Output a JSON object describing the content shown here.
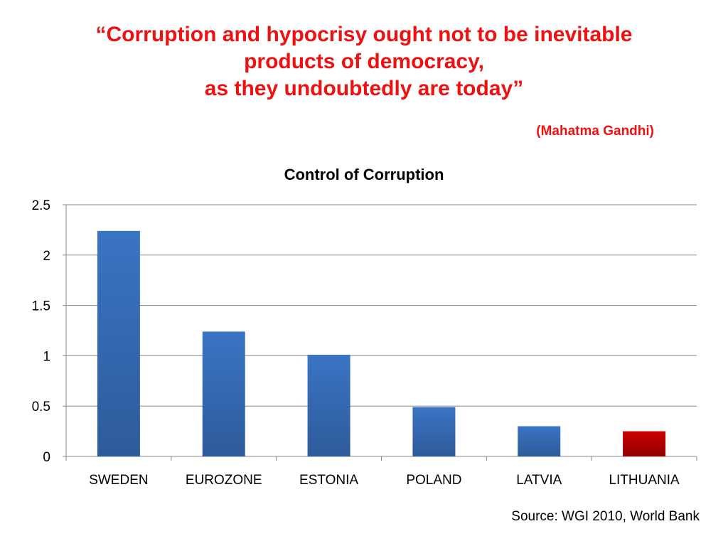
{
  "quote": {
    "lines": [
      "“Corruption and hypocrisy ought not to be inevitable",
      "products of democracy,",
      "as they undoubtedly are today”"
    ],
    "attribution": "(Mahatma Gandhi)"
  },
  "chart_data": {
    "type": "bar",
    "title": "Control of Corruption",
    "xlabel": "",
    "ylabel": "",
    "categories": [
      "SWEDEN",
      "EUROZONE",
      "ESTONIA",
      "POLAND",
      "LATVIA",
      "LITHUANIA"
    ],
    "values": [
      2.24,
      1.24,
      1.01,
      0.49,
      0.3,
      0.25
    ],
    "ylim": [
      0,
      2.5
    ],
    "yticks": [
      0,
      0.5,
      1,
      1.5,
      2,
      2.5
    ],
    "ytick_labels": [
      "0",
      "0.5",
      "1",
      "1.5",
      "2",
      "2.5"
    ],
    "grid": true,
    "legend": "none",
    "colors": {
      "default_bar": "#3a74c4",
      "default_bar_dark": "#2e5b9a",
      "highlight_bar": "#cc0000",
      "highlight_bar_dark": "#8f0000",
      "highlight_category": "LITHUANIA",
      "gridline": "#888888"
    }
  },
  "source": "Source: WGI 2010, World Bank"
}
